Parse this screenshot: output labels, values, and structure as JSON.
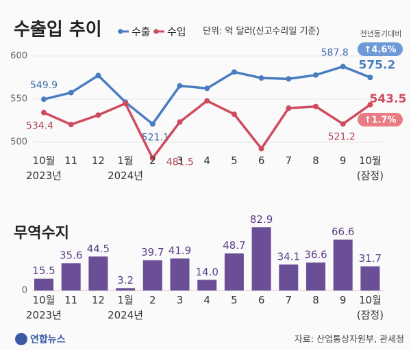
{
  "chart_data": [
    {
      "type": "line",
      "title": "수출입 추이",
      "note": "단위: 억 달러(신고수리일 기준)",
      "change_label": "전년동기대비",
      "categories": [
        "10월\n2023년",
        "11",
        "12",
        "1월\n2024년",
        "2",
        "3",
        "4",
        "5",
        "6",
        "7",
        "8",
        "9",
        "10월\n(잠정)"
      ],
      "series": [
        {
          "name": "수출",
          "color": "#4a7cc0",
          "change": "↑4.6%",
          "values": [
            549.9,
            557.5,
            577.5,
            546.5,
            521.1,
            565.5,
            562.5,
            581.5,
            574.5,
            573.5,
            578,
            587.8,
            575.2
          ],
          "value_labels": [
            "549.9",
            null,
            null,
            null,
            "521.1",
            null,
            null,
            null,
            null,
            null,
            null,
            "587.8",
            "575.2"
          ]
        },
        {
          "name": "수입",
          "color": "#cf4a5e",
          "change": "↑1.7%",
          "values": [
            534.4,
            520.5,
            531.5,
            545,
            481.5,
            523.5,
            548,
            532.5,
            492.5,
            539.5,
            541.5,
            521.2,
            543.5
          ],
          "value_labels": [
            "534.4",
            null,
            null,
            null,
            "481.5",
            null,
            null,
            null,
            null,
            null,
            null,
            "521.2",
            "543.5"
          ]
        }
      ],
      "ylim": [
        484,
        610
      ],
      "yticks": [
        500,
        550,
        600
      ],
      "grid": true
    },
    {
      "type": "bar",
      "title": "무역수지",
      "color": "#6b4f96",
      "categories": [
        "10월\n2023년",
        "11",
        "12",
        "1월\n2024년",
        "2",
        "3",
        "4",
        "5",
        "6",
        "7",
        "8",
        "9",
        "10월\n(잠정)"
      ],
      "values": [
        15.5,
        35.6,
        44.5,
        3.2,
        39.7,
        41.9,
        14.0,
        48.7,
        82.9,
        34.1,
        36.6,
        66.6,
        31.7
      ],
      "value_labels": [
        "15.5",
        "35.6",
        "44.5",
        "3.2",
        "39.7",
        "41.9",
        "14.0",
        "48.7",
        "82.9",
        "34.1",
        "36.6",
        "66.6",
        "31.7"
      ],
      "ylim": [
        0,
        85
      ],
      "yticks": [
        0
      ]
    }
  ],
  "footer": {
    "logo": "연합뉴스",
    "source": "자료: 산업통상자원부, 관세청"
  }
}
